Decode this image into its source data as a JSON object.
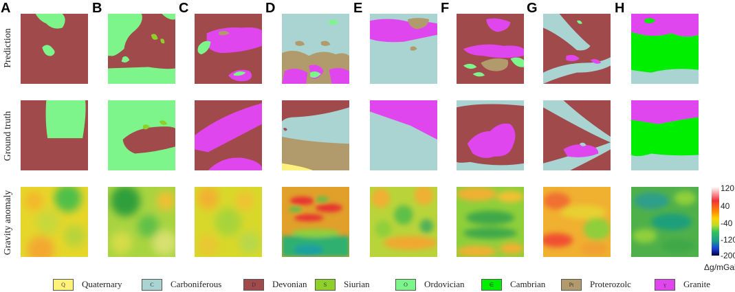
{
  "columns": [
    "A",
    "B",
    "C",
    "D",
    "E",
    "F",
    "G",
    "H"
  ],
  "rows": [
    "Prediction",
    "Ground truth",
    "Gravity anomaly"
  ],
  "colors": {
    "quaternary": "#fff27a",
    "carboniferous": "#a9d4d2",
    "devonian": "#a04a4c",
    "silurian": "#8fcf2a",
    "ordovician": "#7ef58a",
    "cambrian": "#00ee00",
    "proterozoic": "#b19a6c",
    "granite": "#e046ee"
  },
  "colorbar": {
    "ticks": [
      "120",
      "40",
      "-40",
      "-120",
      "-200"
    ],
    "unit": "Δg/mGal"
  },
  "legend": [
    {
      "code": "Q",
      "label": "Quaternary",
      "color": "#fff27a"
    },
    {
      "code": "C",
      "label": "Carboniferous",
      "color": "#a9d4d2"
    },
    {
      "code": "D",
      "label": "Devonian",
      "color": "#a04a4c"
    },
    {
      "code": "S",
      "label": "Siurian",
      "color": "#8fcf2a"
    },
    {
      "code": "O",
      "label": "Ordovician",
      "color": "#7ef58a"
    },
    {
      "code": "∈",
      "label": "Cambrian",
      "color": "#00ee00"
    },
    {
      "code": "Pt",
      "label": "Proterozolc",
      "color": "#b19a6c"
    },
    {
      "code": "γ",
      "label": "Granite",
      "color": "#e046ee"
    }
  ]
}
